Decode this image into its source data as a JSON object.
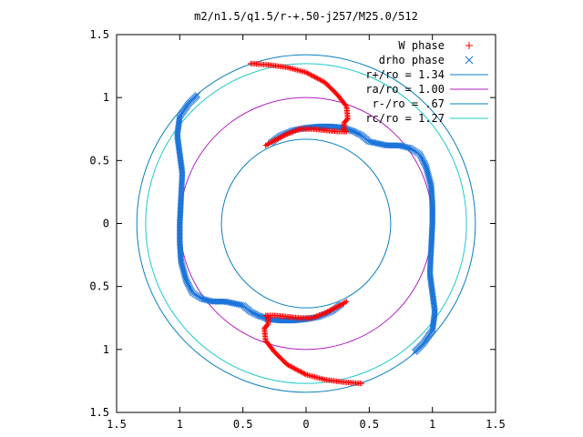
{
  "chart_data": {
    "type": "scatter",
    "title": "m2/n1.5/q1.5/r-+.50-j257/M25.0/512",
    "xlim": [
      -1.5,
      1.5
    ],
    "ylim": [
      -1.5,
      1.5
    ],
    "x_ticks": [
      {
        "value": -1.5,
        "label": "1.5"
      },
      {
        "value": -1.0,
        "label": "1"
      },
      {
        "value": -0.5,
        "label": "0.5"
      },
      {
        "value": 0.0,
        "label": "0"
      },
      {
        "value": 0.5,
        "label": "0.5"
      },
      {
        "value": 1.0,
        "label": "1"
      },
      {
        "value": 1.5,
        "label": "1.5"
      }
    ],
    "y_ticks": [
      {
        "value": 1.5,
        "label": "1.5"
      },
      {
        "value": 1.0,
        "label": "1"
      },
      {
        "value": 0.5,
        "label": "0.5"
      },
      {
        "value": 0.0,
        "label": "0"
      },
      {
        "value": -0.5,
        "label": "0.5"
      },
      {
        "value": -1.0,
        "label": "1"
      },
      {
        "value": -1.5,
        "label": "1.5"
      }
    ],
    "grid": false,
    "legend_position": "top-right",
    "circles": [
      {
        "name": "r+/ro = 1.34",
        "radius": 1.34,
        "color": "#0a7fbf"
      },
      {
        "name": "ra/ro = 1.00",
        "radius": 1.0,
        "color": "#b01ec0"
      },
      {
        "name": "r-/ro = .67",
        "radius": 0.67,
        "color": "#0a7fbf"
      },
      {
        "name": "rc/ro = 1.27",
        "radius": 1.27,
        "color": "#1fc9c9"
      }
    ],
    "series": [
      {
        "name": "W phase",
        "marker": "+",
        "color": "#ff0000",
        "x": [
          -0.44,
          -0.3,
          -0.15,
          0.0,
          0.15,
          0.25,
          0.32,
          0.33,
          0.3,
          0.3,
          0.32,
          0.25,
          0.15,
          0.05,
          -0.05,
          -0.15,
          -0.25,
          -0.32,
          0.44,
          0.3,
          0.15,
          0.0,
          -0.15,
          -0.25,
          -0.32,
          -0.33,
          -0.3,
          -0.3,
          -0.32,
          -0.25,
          -0.15,
          -0.05,
          0.05,
          0.15,
          0.25,
          0.32
        ],
        "y": [
          1.27,
          1.26,
          1.24,
          1.2,
          1.12,
          1.02,
          0.93,
          0.83,
          0.8,
          0.74,
          0.73,
          0.73,
          0.74,
          0.75,
          0.75,
          0.71,
          0.66,
          0.62,
          -1.27,
          -1.26,
          -1.24,
          -1.2,
          -1.12,
          -1.02,
          -0.93,
          -0.83,
          -0.8,
          -0.74,
          -0.73,
          -0.73,
          -0.74,
          -0.75,
          -0.75,
          -0.71,
          -0.66,
          -0.62
        ]
      },
      {
        "name": "drho phase",
        "marker": "x",
        "color": "#1a73d9",
        "x": [
          -0.86,
          -0.93,
          -1.0,
          -1.02,
          -1.0,
          -0.98,
          -0.99,
          -1.0,
          -1.0,
          -0.99,
          -0.95,
          -0.9,
          -0.82,
          -0.74,
          -0.64,
          -0.5,
          -0.44,
          -0.38,
          -0.3,
          -0.2,
          -0.1,
          0.0,
          0.1,
          0.2,
          0.28,
          0.86,
          0.93,
          1.0,
          1.02,
          1.0,
          0.98,
          0.99,
          1.0,
          1.0,
          0.99,
          0.95,
          0.9,
          0.82,
          0.74,
          0.64,
          0.5,
          0.44,
          0.38,
          0.3,
          0.2,
          0.1,
          0.0,
          -0.1,
          -0.2,
          -0.28
        ],
        "y": [
          1.02,
          0.95,
          0.85,
          0.7,
          0.55,
          0.4,
          0.2,
          0.0,
          -0.15,
          -0.3,
          -0.45,
          -0.55,
          -0.6,
          -0.62,
          -0.62,
          -0.65,
          -0.7,
          -0.73,
          -0.76,
          -0.77,
          -0.77,
          -0.76,
          -0.74,
          -0.7,
          -0.64,
          -1.02,
          -0.95,
          -0.85,
          -0.7,
          -0.55,
          -0.4,
          -0.2,
          0.0,
          0.15,
          0.3,
          0.45,
          0.55,
          0.6,
          0.62,
          0.62,
          0.65,
          0.7,
          0.73,
          0.76,
          0.77,
          0.77,
          0.76,
          0.74,
          0.7,
          0.64
        ]
      }
    ]
  }
}
